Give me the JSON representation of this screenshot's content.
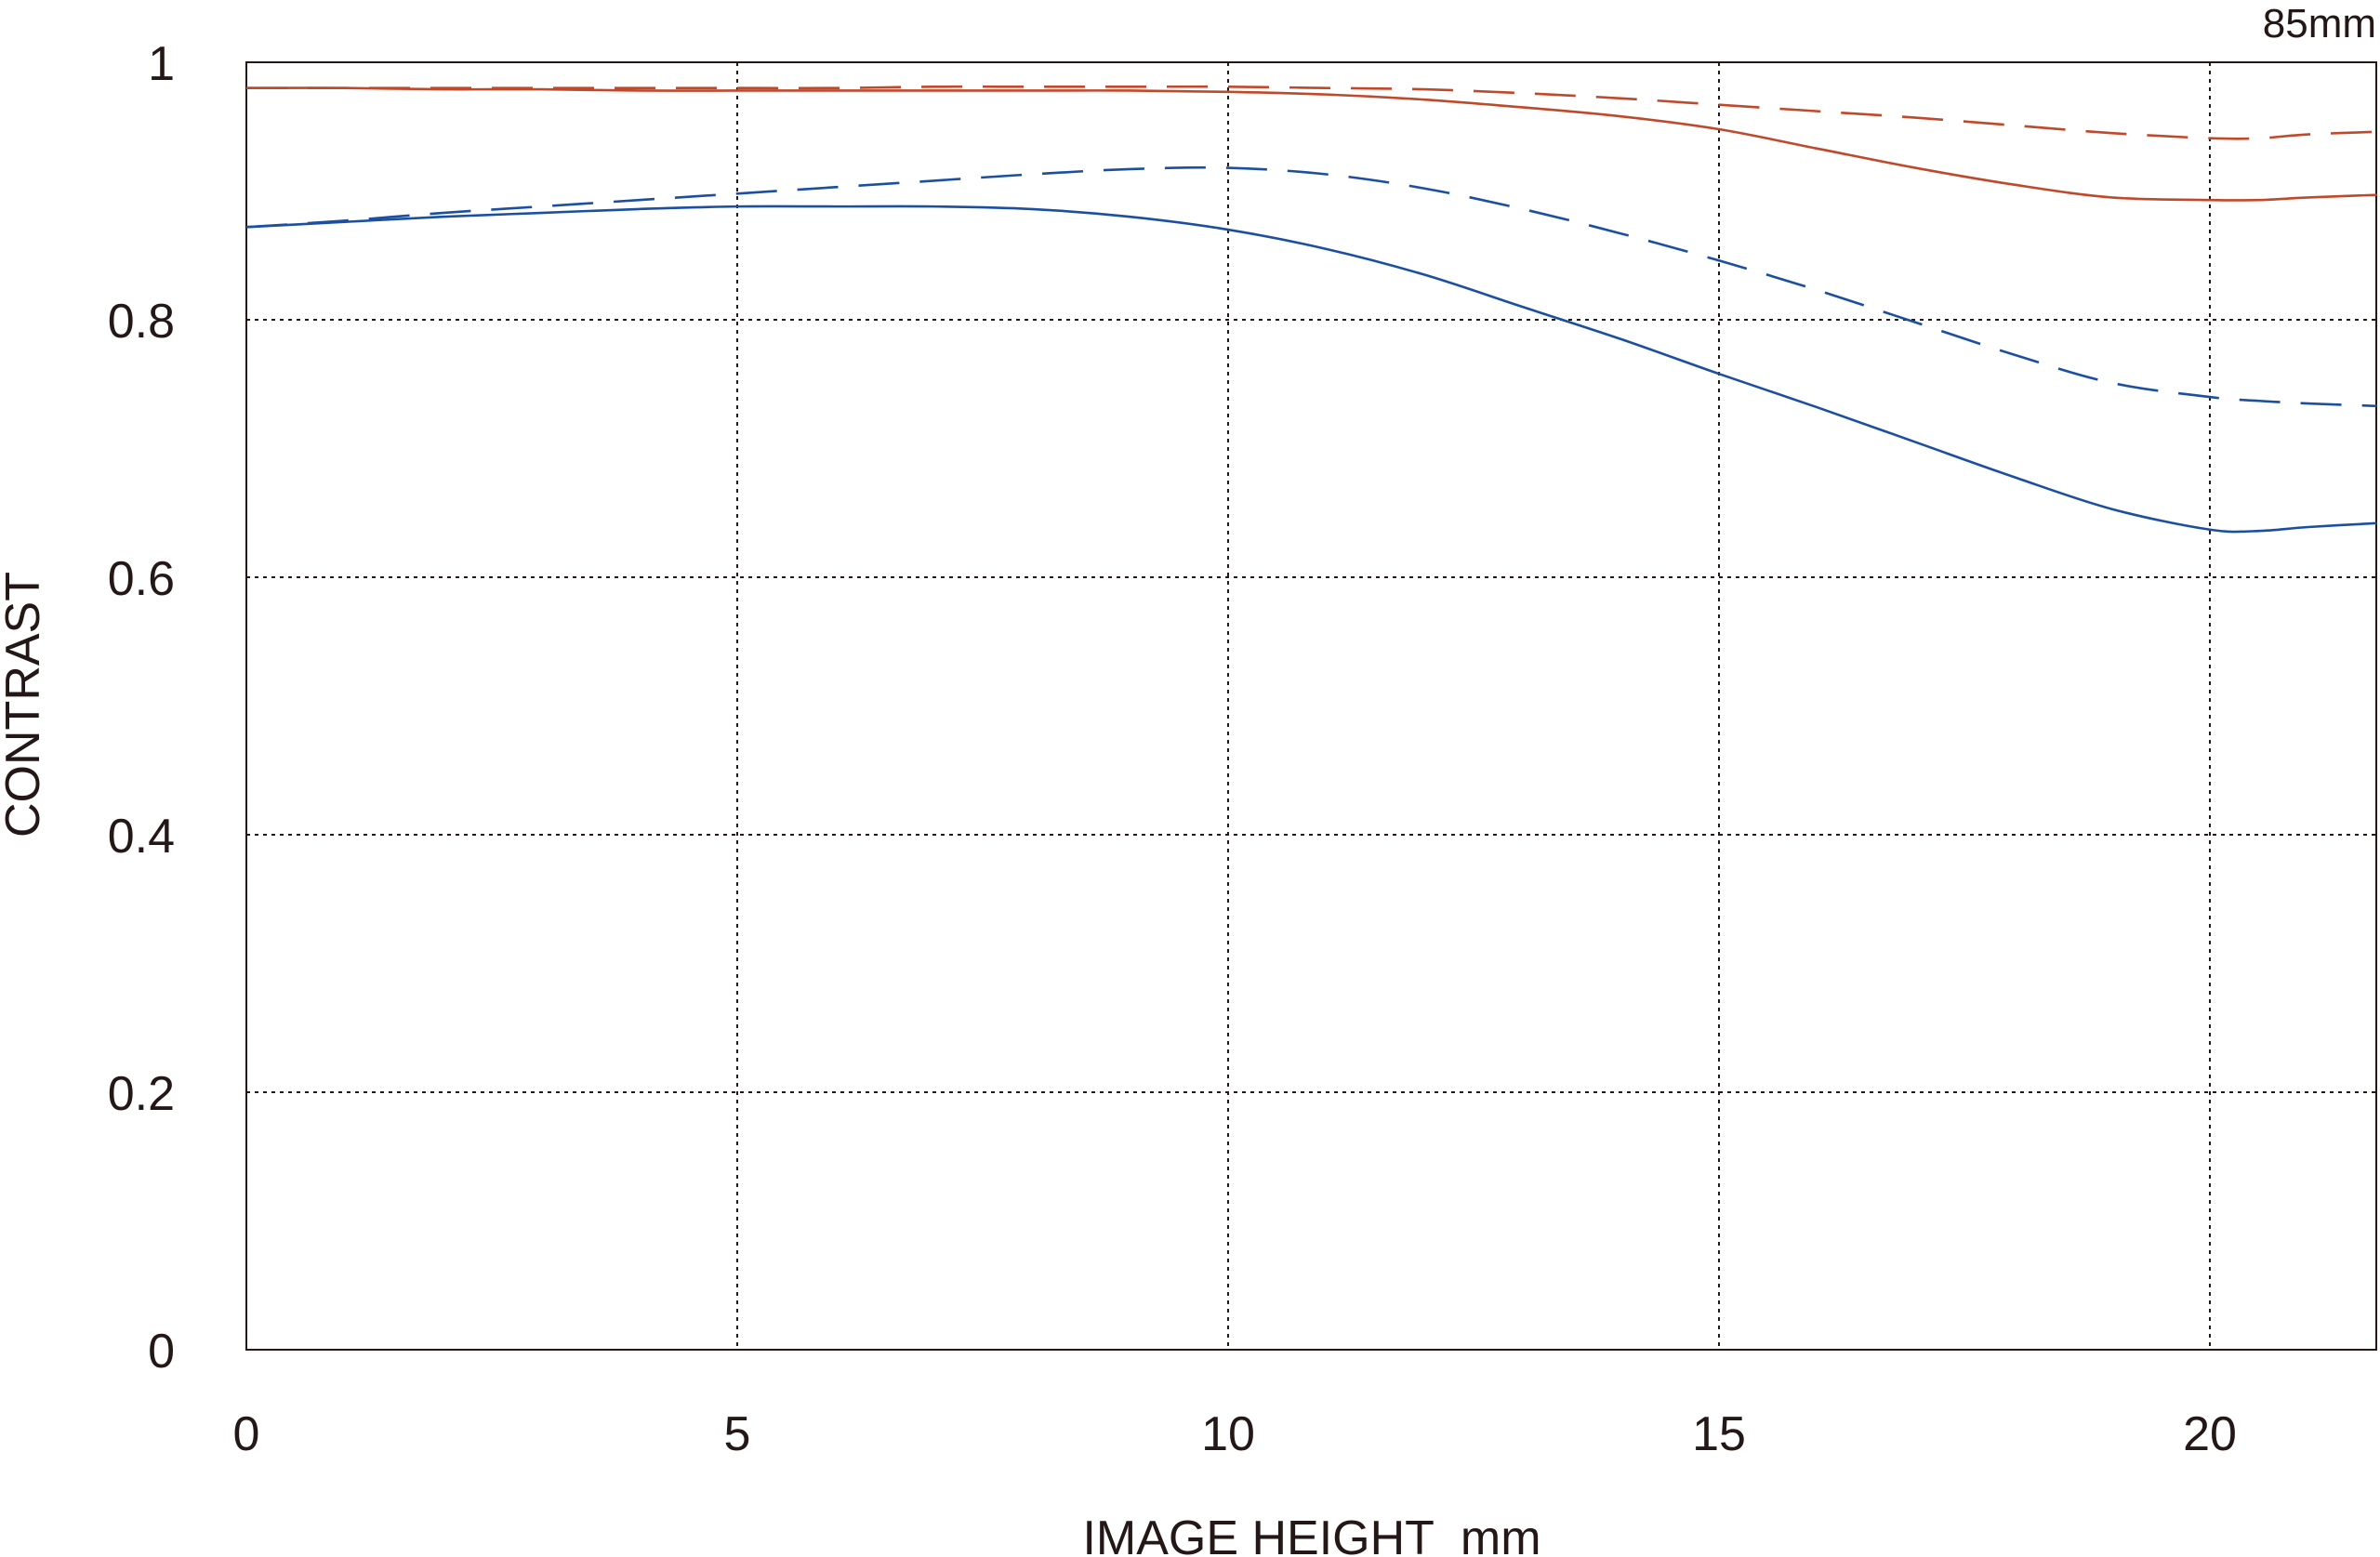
{
  "chart_data": {
    "type": "line",
    "focal_length_label": "85mm",
    "xlabel": "IMAGE HEIGHT  mm",
    "ylabel": "CONTRAST",
    "xlim": [
      0,
      21.7
    ],
    "ylim": [
      0,
      1
    ],
    "x_ticks": [
      0,
      5,
      10,
      15,
      20
    ],
    "x_tick_labels": [
      "0",
      "5",
      "10",
      "15",
      "20"
    ],
    "y_ticks": [
      0,
      0.2,
      0.4,
      0.6,
      0.8,
      1
    ],
    "y_tick_labels": [
      "0",
      "0.2",
      "0.4",
      "0.6",
      "0.8",
      "1"
    ],
    "grid": true,
    "colors": {
      "red": "#c0492b",
      "blue": "#1b4fa0",
      "ink": "#231815"
    },
    "series": [
      {
        "color_key": "red",
        "style": "solid",
        "x": [
          0,
          1,
          2,
          3,
          4,
          5,
          6,
          7,
          8,
          9,
          10,
          11,
          12,
          13,
          14,
          15,
          16,
          17,
          18,
          19,
          20,
          20.5,
          21,
          21.7
        ],
        "y": [
          0.98,
          0.98,
          0.979,
          0.979,
          0.978,
          0.978,
          0.978,
          0.978,
          0.978,
          0.978,
          0.977,
          0.975,
          0.971,
          0.965,
          0.958,
          0.948,
          0.933,
          0.918,
          0.905,
          0.895,
          0.893,
          0.893,
          0.895,
          0.897
        ]
      },
      {
        "color_key": "red",
        "style": "dashed",
        "x": [
          0,
          1,
          2,
          3,
          4,
          5,
          6,
          7,
          8,
          9,
          10,
          11,
          12,
          13,
          14,
          15,
          16,
          17,
          18,
          19,
          20,
          20.5,
          21,
          21.7
        ],
        "y": [
          0.98,
          0.98,
          0.98,
          0.98,
          0.98,
          0.98,
          0.98,
          0.981,
          0.981,
          0.981,
          0.981,
          0.98,
          0.979,
          0.976,
          0.972,
          0.967,
          0.962,
          0.957,
          0.951,
          0.945,
          0.941,
          0.941,
          0.944,
          0.946
        ]
      },
      {
        "color_key": "blue",
        "style": "solid",
        "x": [
          0,
          1,
          2,
          3,
          4,
          5,
          6,
          7,
          8,
          9,
          10,
          11,
          12,
          13,
          14,
          15,
          16,
          17,
          18,
          19,
          20,
          20.5,
          21,
          21.7
        ],
        "y": [
          0.872,
          0.876,
          0.88,
          0.883,
          0.886,
          0.888,
          0.888,
          0.888,
          0.886,
          0.88,
          0.87,
          0.855,
          0.835,
          0.81,
          0.785,
          0.758,
          0.732,
          0.705,
          0.678,
          0.653,
          0.637,
          0.636,
          0.639,
          0.642
        ]
      },
      {
        "color_key": "blue",
        "style": "dashed",
        "x": [
          0,
          1,
          2,
          3,
          4,
          5,
          6,
          7,
          8,
          9,
          10,
          11,
          12,
          13,
          14,
          15,
          16,
          17,
          18,
          19,
          20,
          20.5,
          21,
          21.7
        ],
        "y": [
          0.872,
          0.877,
          0.883,
          0.888,
          0.893,
          0.898,
          0.903,
          0.908,
          0.913,
          0.917,
          0.918,
          0.913,
          0.902,
          0.886,
          0.867,
          0.846,
          0.823,
          0.798,
          0.773,
          0.751,
          0.74,
          0.737,
          0.735,
          0.733
        ]
      }
    ]
  }
}
